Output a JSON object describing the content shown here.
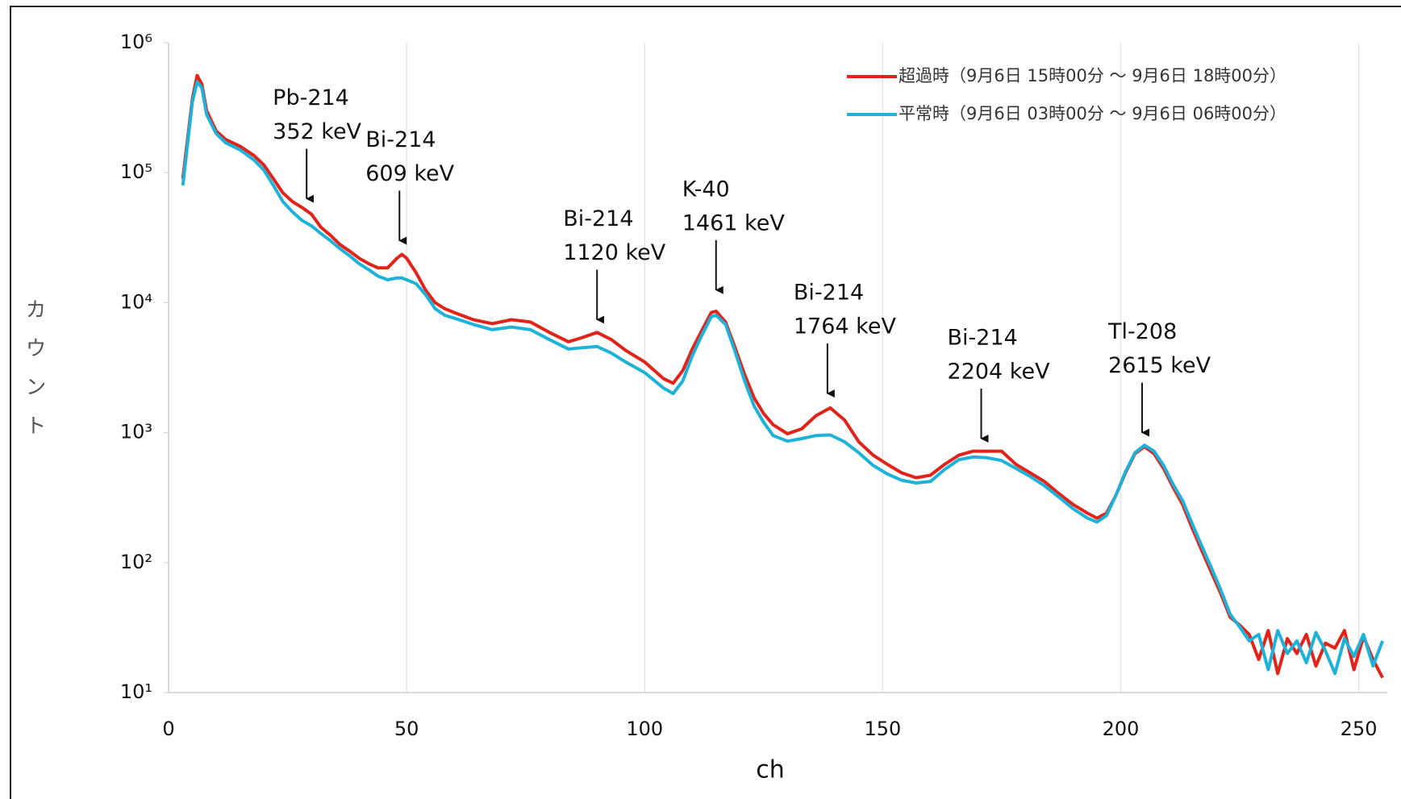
{
  "chart_data": {
    "type": "line",
    "x_label": "ch",
    "y_label": "カウント",
    "log_y": true,
    "grid": true,
    "legend": "upper right",
    "xlim": [
      0,
      256
    ],
    "xticks": [
      0,
      50,
      100,
      150,
      200,
      250
    ],
    "ylim": [
      10,
      1000000
    ],
    "yticks": [
      {
        "value": 10,
        "label": "10¹"
      },
      {
        "value": 100,
        "label": "10²"
      },
      {
        "value": 1000,
        "label": "10³"
      },
      {
        "value": 10000,
        "label": "10⁴"
      },
      {
        "value": 100000,
        "label": "10⁵"
      },
      {
        "value": 1000000,
        "label": "10⁶"
      }
    ],
    "x": [
      3,
      5,
      6,
      7,
      8,
      10,
      12,
      15,
      18,
      20,
      22,
      24,
      26,
      28,
      30,
      32,
      34,
      36,
      38,
      40,
      42,
      44,
      46,
      48,
      49,
      50,
      52,
      54,
      56,
      58,
      60,
      64,
      68,
      72,
      76,
      80,
      84,
      87,
      90,
      93,
      96,
      100,
      104,
      106,
      108,
      110,
      112,
      114,
      115,
      117,
      119,
      121,
      123,
      125,
      127,
      130,
      133,
      136,
      139,
      142,
      145,
      148,
      151,
      154,
      157,
      160,
      163,
      166,
      169,
      172,
      175,
      178,
      181,
      184,
      187,
      190,
      193,
      195,
      197,
      199,
      201,
      203,
      205,
      207,
      209,
      211,
      213,
      215,
      217,
      219,
      221,
      223,
      225,
      227,
      229,
      231,
      233,
      235,
      237,
      239,
      241,
      243,
      245,
      247,
      249,
      251,
      253,
      255
    ],
    "series": [
      {
        "name": "超過時（9月6日 15時00分 ～ 9月6日 18時00分）",
        "color": "#e2231a",
        "values": [
          90000,
          370000,
          560000,
          480000,
          300000,
          210000,
          180000,
          160000,
          135000,
          115000,
          90000,
          70000,
          60000,
          54000,
          48000,
          38000,
          33000,
          28000,
          25000,
          22000,
          20000,
          18500,
          18500,
          22000,
          23500,
          22000,
          17000,
          12500,
          10000,
          9000,
          8400,
          7400,
          6900,
          7400,
          7100,
          5900,
          5000,
          5400,
          5900,
          5200,
          4300,
          3500,
          2600,
          2400,
          3000,
          4400,
          6100,
          8400,
          8600,
          7100,
          4500,
          2800,
          1850,
          1400,
          1150,
          980,
          1070,
          1350,
          1550,
          1250,
          850,
          670,
          570,
          490,
          450,
          470,
          570,
          670,
          720,
          720,
          720,
          570,
          490,
          420,
          340,
          280,
          240,
          220,
          240,
          330,
          490,
          690,
          780,
          690,
          530,
          380,
          280,
          185,
          125,
          85,
          58,
          38,
          33,
          28,
          18,
          30,
          14,
          26,
          20,
          28,
          16,
          24,
          22,
          30,
          15,
          27,
          18,
          13
        ]
      },
      {
        "name": "平常時（9月6日 03時00分 ～ 9月6日 06時00分）",
        "color": "#1fb2d9",
        "values": [
          80000,
          350000,
          500000,
          450000,
          280000,
          200000,
          170000,
          150000,
          125000,
          105000,
          80000,
          60000,
          50000,
          43000,
          39000,
          34000,
          30000,
          26000,
          23000,
          20000,
          18000,
          16000,
          15000,
          15500,
          15500,
          15000,
          14000,
          11500,
          9000,
          8000,
          7600,
          6800,
          6200,
          6500,
          6200,
          5200,
          4400,
          4500,
          4600,
          4100,
          3500,
          2900,
          2200,
          2000,
          2500,
          3900,
          5600,
          7800,
          8000,
          6800,
          4200,
          2500,
          1600,
          1200,
          950,
          860,
          900,
          950,
          960,
          850,
          700,
          560,
          480,
          430,
          410,
          420,
          520,
          620,
          650,
          640,
          610,
          530,
          460,
          390,
          320,
          260,
          220,
          205,
          230,
          330,
          500,
          700,
          800,
          720,
          560,
          400,
          300,
          200,
          135,
          92,
          62,
          40,
          32,
          25,
          28,
          15,
          30,
          20,
          25,
          17,
          29,
          21,
          14,
          26,
          19,
          28,
          16,
          25
        ]
      }
    ],
    "annotations": [
      {
        "label": "Pb-214",
        "energy": "352 keV",
        "x": 29,
        "y": 63000
      },
      {
        "label": "Bi-214",
        "energy": "609 keV",
        "x": 48.5,
        "y": 30000
      },
      {
        "label": "Bi-214",
        "energy": "1120 keV",
        "x": 90,
        "y": 7400
      },
      {
        "label": "K-40",
        "energy": "1461 keV",
        "x": 115,
        "y": 12500
      },
      {
        "label": "Bi-214",
        "energy": "1764 keV",
        "x": 138.4,
        "y": 2000
      },
      {
        "label": "Bi-214",
        "energy": "2204 keV",
        "x": 170.7,
        "y": 900
      },
      {
        "label": "Tl-208",
        "energy": "2615 keV",
        "x": 204.5,
        "y": 1000
      }
    ]
  }
}
